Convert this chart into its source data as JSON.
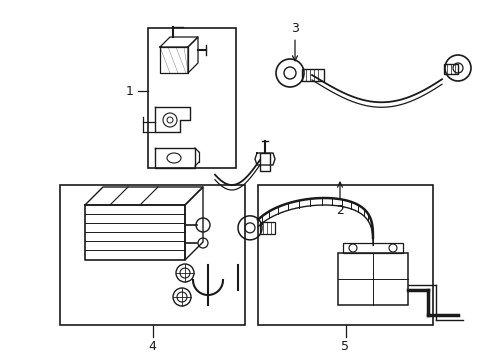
{
  "background_color": "#ffffff",
  "line_color": "#1a1a1a",
  "fig_width": 4.89,
  "fig_height": 3.6,
  "dpi": 100,
  "label_fontsize": 9
}
